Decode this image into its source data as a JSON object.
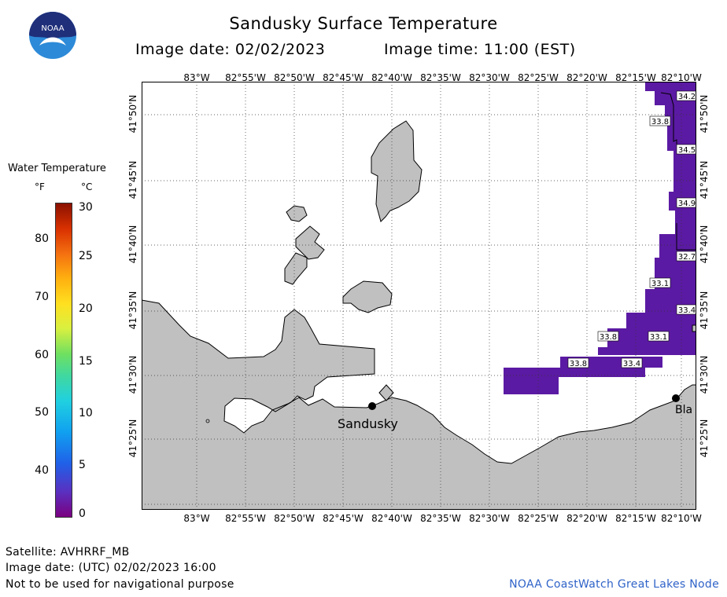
{
  "header": {
    "title": "Sandusky Surface Temperature",
    "image_date": "Image date: 02/02/2023",
    "image_time": "Image time: 11:00 (EST)"
  },
  "logo": {
    "text": "NOAA",
    "icon": "noaa-logo-icon",
    "color_top": "#1f2f7a",
    "color_bottom": "#2d8ad8"
  },
  "legend": {
    "title": "Water Temperature",
    "unit_f": "°F",
    "unit_c": "°C",
    "fahrenheit_ticks": [
      "80",
      "70",
      "60",
      "50",
      "40"
    ],
    "celsius_ticks": [
      "30",
      "25",
      "20",
      "15",
      "10",
      "5",
      "0"
    ]
  },
  "map": {
    "longitude_labels": [
      "83°W",
      "82°55'W",
      "82°50'W",
      "82°45'W",
      "82°40'W",
      "82°35'W",
      "82°30'W",
      "82°25'W",
      "82°20'W",
      "82°15'W",
      "82°10'W"
    ],
    "latitude_labels": [
      "41°50'N",
      "41°45'N",
      "41°40'N",
      "41°35'N",
      "41°30'N",
      "41°25'N"
    ],
    "temperature_labels": [
      "34.2",
      "33.8",
      "34.5",
      "34.9",
      "32.7",
      "33.1",
      "33.4",
      "33.8",
      "33.1",
      "33.8",
      "33.4"
    ],
    "cities": [
      "Sandusky",
      "Bla"
    ],
    "land_color": "#c0c0c0",
    "water_color": "#ffffff",
    "coldwater_color": "#5b1aa3"
  },
  "footer": {
    "satellite": "Satellite: AVHRRF_MB",
    "utc_date": "Image date: (UTC) 02/02/2023  16:00",
    "disclaimer": "Not to be used for navigational purpose",
    "credit": "NOAA CoastWatch Great Lakes Node"
  }
}
